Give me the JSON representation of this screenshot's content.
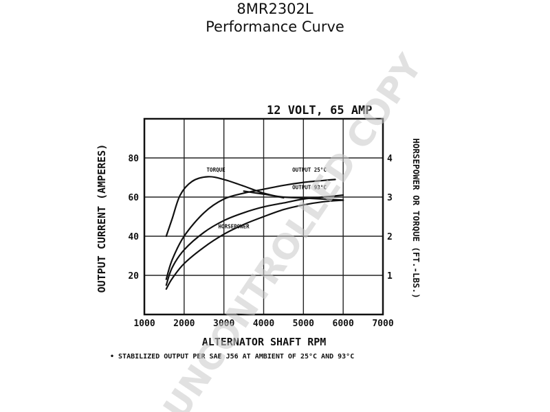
{
  "title": "8MR2302L",
  "subtitle": "Performance Curve",
  "watermark": "UNCONTROLLED COPY",
  "chart_data": {
    "type": "line",
    "rating_label": "12 VOLT, 65 AMP",
    "xlabel": "ALTERNATOR SHAFT RPM",
    "ylabel": "OUTPUT CURRENT (AMPERES)",
    "y2label": "HORSEPOWER OR TORQUE (FT.-LBS.)",
    "xlim": [
      1000,
      7000
    ],
    "ylim": [
      0,
      100
    ],
    "y2lim": [
      0,
      5
    ],
    "x_ticks": [
      "1000",
      "2000",
      "3000",
      "4000",
      "5000",
      "6000",
      "7000"
    ],
    "y_ticks": [
      "20",
      "40",
      "60",
      "80"
    ],
    "y2_ticks": [
      "1",
      "2",
      "3",
      "4"
    ],
    "grid": true,
    "footnote": "• STABILIZED OUTPUT PER SAE J56 AT AMBIENT OF 25°C AND 93°C",
    "series": [
      {
        "name": "TORQUE",
        "axis": "right",
        "x": [
          1550,
          1700,
          1900,
          2200,
          2600,
          3000,
          3500,
          4000,
          4500
        ],
        "y": [
          2.0,
          2.45,
          3.05,
          3.4,
          3.52,
          3.45,
          3.28,
          3.1,
          2.98
        ]
      },
      {
        "name": "OUTPUT @ 25°C",
        "axis": "left",
        "x": [
          1550,
          1700,
          2000,
          2500,
          3000,
          3500,
          4000,
          4500,
          5000,
          5500,
          5800
        ],
        "y": [
          18,
          28,
          40,
          52,
          59,
          62,
          64,
          66,
          67.5,
          68.5,
          69
        ]
      },
      {
        "name": "OUTPUT @ 93°C",
        "axis": "left",
        "x": [
          1550,
          1700,
          2000,
          2500,
          3000,
          3500,
          4000,
          4500,
          5000,
          5500,
          6000
        ],
        "y": [
          15,
          24,
          33,
          42,
          48,
          52,
          55,
          57,
          59,
          60,
          61
        ]
      },
      {
        "name": "HORSEPOWER",
        "axis": "right",
        "x": [
          1550,
          1700,
          2000,
          2500,
          3000,
          3500,
          4000,
          4500,
          5000,
          5500,
          6000
        ],
        "y": [
          0.65,
          0.92,
          1.3,
          1.72,
          2.05,
          2.3,
          2.5,
          2.68,
          2.8,
          2.88,
          2.92
        ]
      },
      {
        "name": "",
        "axis": "left",
        "x": [
          3500,
          4000,
          4500,
          5000,
          5500,
          6000
        ],
        "y": [
          63,
          61.5,
          60,
          59.5,
          59,
          58.5
        ]
      }
    ],
    "curve_labels": [
      {
        "text": "TORQUE",
        "x": 2800,
        "y": 73
      },
      {
        "text": "OUTPUT 25°C",
        "x": 5150,
        "y": 73
      },
      {
        "text": "OUTPUT 93°C",
        "x": 5150,
        "y": 64
      },
      {
        "text": "HORSEPOWER",
        "x": 3250,
        "y": 44
      }
    ]
  }
}
